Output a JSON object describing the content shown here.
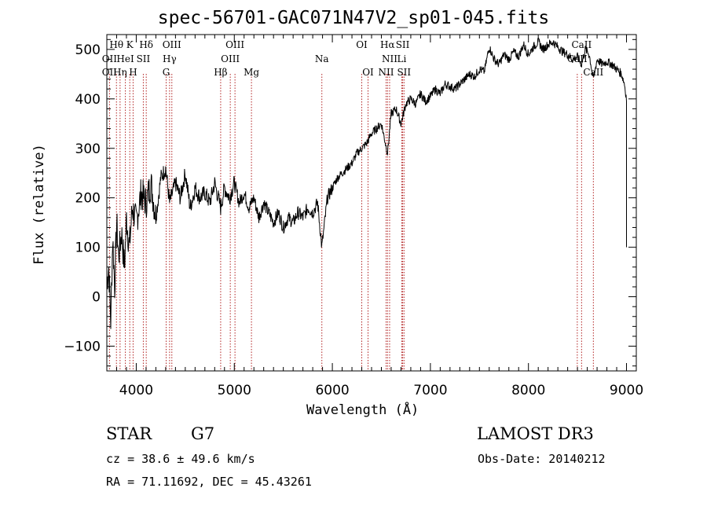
{
  "chart_data": {
    "type": "line",
    "title": "spec-56701-GAC071N47V2_sp01-045.fits",
    "xlabel": "Wavelength (Å)",
    "ylabel": "Flux (relative)",
    "xlim": [
      3700,
      9100
    ],
    "ylim": [
      -150,
      530
    ],
    "xticks": [
      4000,
      5000,
      6000,
      7000,
      8000,
      9000
    ],
    "xtick_labels": [
      "4000",
      "5000",
      "6000",
      "7000",
      "8000",
      "9000"
    ],
    "yticks": [
      -100,
      0,
      100,
      200,
      300,
      400,
      500
    ],
    "ytick_labels": [
      "−100",
      "0",
      "100",
      "200",
      "300",
      "400",
      "500"
    ],
    "series": [
      {
        "name": "flux",
        "x": [
          3700,
          3720,
          3740,
          3760,
          3780,
          3800,
          3820,
          3850,
          3880,
          3900,
          3930,
          3960,
          4000,
          4050,
          4100,
          4150,
          4200,
          4250,
          4300,
          4340,
          4400,
          4450,
          4500,
          4550,
          4600,
          4650,
          4700,
          4750,
          4800,
          4861,
          4900,
          4950,
          5000,
          5050,
          5100,
          5150,
          5200,
          5250,
          5300,
          5350,
          5400,
          5450,
          5500,
          5550,
          5600,
          5650,
          5700,
          5750,
          5800,
          5850,
          5893,
          5950,
          6000,
          6050,
          6100,
          6150,
          6200,
          6250,
          6300,
          6350,
          6400,
          6450,
          6500,
          6563,
          6600,
          6650,
          6700,
          6750,
          6800,
          6850,
          6900,
          6950,
          7000,
          7050,
          7100,
          7150,
          7200,
          7250,
          7300,
          7350,
          7400,
          7450,
          7500,
          7550,
          7600,
          7650,
          7700,
          7750,
          7800,
          7850,
          7900,
          7950,
          8000,
          8050,
          8100,
          8150,
          8200,
          8250,
          8300,
          8350,
          8400,
          8450,
          8500,
          8542,
          8580,
          8620,
          8662,
          8700,
          8750,
          8800,
          8850,
          8900,
          8950,
          8980,
          9000,
          9000
        ],
        "values": [
          30,
          60,
          -50,
          120,
          20,
          150,
          80,
          130,
          60,
          160,
          100,
          180,
          150,
          210,
          190,
          230,
          160,
          240,
          260,
          190,
          230,
          200,
          250,
          180,
          220,
          200,
          210,
          190,
          230,
          180,
          220,
          200,
          230,
          190,
          210,
          180,
          200,
          160,
          190,
          170,
          150,
          170,
          140,
          160,
          150,
          170,
          160,
          180,
          170,
          190,
          100,
          200,
          220,
          240,
          250,
          260,
          270,
          290,
          300,
          310,
          330,
          340,
          350,
          290,
          370,
          380,
          350,
          390,
          400,
          390,
          410,
          395,
          405,
          420,
          410,
          430,
          425,
          420,
          430,
          440,
          450,
          445,
          460,
          455,
          505,
          480,
          470,
          490,
          480,
          495,
          485,
          510,
          490,
          505,
          515,
          500,
          510,
          515,
          505,
          495,
          490,
          480,
          485,
          470,
          500,
          490,
          440,
          480,
          470,
          475,
          470,
          460,
          450,
          430,
          400,
          100
        ]
      }
    ],
    "line_labels_row1": [
      {
        "text": "Hθ",
        "wl": 3798
      },
      {
        "text": "K",
        "wl": 3934
      },
      {
        "text": "Hδ",
        "wl": 4102
      },
      {
        "text": "OIII",
        "wl": 4363
      },
      {
        "text": "OIII",
        "wl": 5007
      },
      {
        "text": "OI",
        "wl": 6300
      },
      {
        "text": "Hα",
        "wl": 6563
      },
      {
        "text": "SII",
        "wl": 6717
      },
      {
        "text": "CaII",
        "wl": 8542
      }
    ],
    "line_labels_row2": [
      {
        "text": "OII",
        "wl": 3727
      },
      {
        "text": "HeI",
        "wl": 3889
      },
      {
        "text": "SII",
        "wl": 4072
      },
      {
        "text": "Hγ",
        "wl": 4340
      },
      {
        "text": "OIII",
        "wl": 4959
      },
      {
        "text": "Na",
        "wl": 5893
      },
      {
        "text": "NII",
        "wl": 6584
      },
      {
        "text": "Li",
        "wl": 6708
      },
      {
        "text": "CaII",
        "wl": 8498
      }
    ],
    "line_labels_row3": [
      {
        "text": "OII",
        "wl": 3727
      },
      {
        "text": "Hη",
        "wl": 3835
      },
      {
        "text": "H",
        "wl": 3968
      },
      {
        "text": "G",
        "wl": 4305
      },
      {
        "text": "Hβ",
        "wl": 4861
      },
      {
        "text": "Mg",
        "wl": 5175
      },
      {
        "text": "OI",
        "wl": 6364
      },
      {
        "text": "NII",
        "wl": 6548
      },
      {
        "text": "SII",
        "wl": 6731
      },
      {
        "text": "CaII",
        "wl": 8662
      }
    ],
    "line_markers": [
      3727,
      3798,
      3835,
      3889,
      3934,
      3968,
      4072,
      4102,
      4305,
      4340,
      4363,
      4861,
      4959,
      5007,
      5175,
      5893,
      6300,
      6364,
      6548,
      6563,
      6584,
      6708,
      6717,
      6731,
      8498,
      8542,
      8662
    ]
  },
  "info": {
    "class_label": "STAR",
    "subclass": "G7",
    "survey": "LAMOST DR3",
    "cz_line": "cz = 38.6 ± 49.6 km/s",
    "obs_date": "Obs-Date: 20140212",
    "radec_line": "RA =  71.11692, DEC =  45.43261"
  },
  "colors": {
    "spectrum": "#000000",
    "line_markers": "#b22222",
    "axes": "#000000"
  }
}
